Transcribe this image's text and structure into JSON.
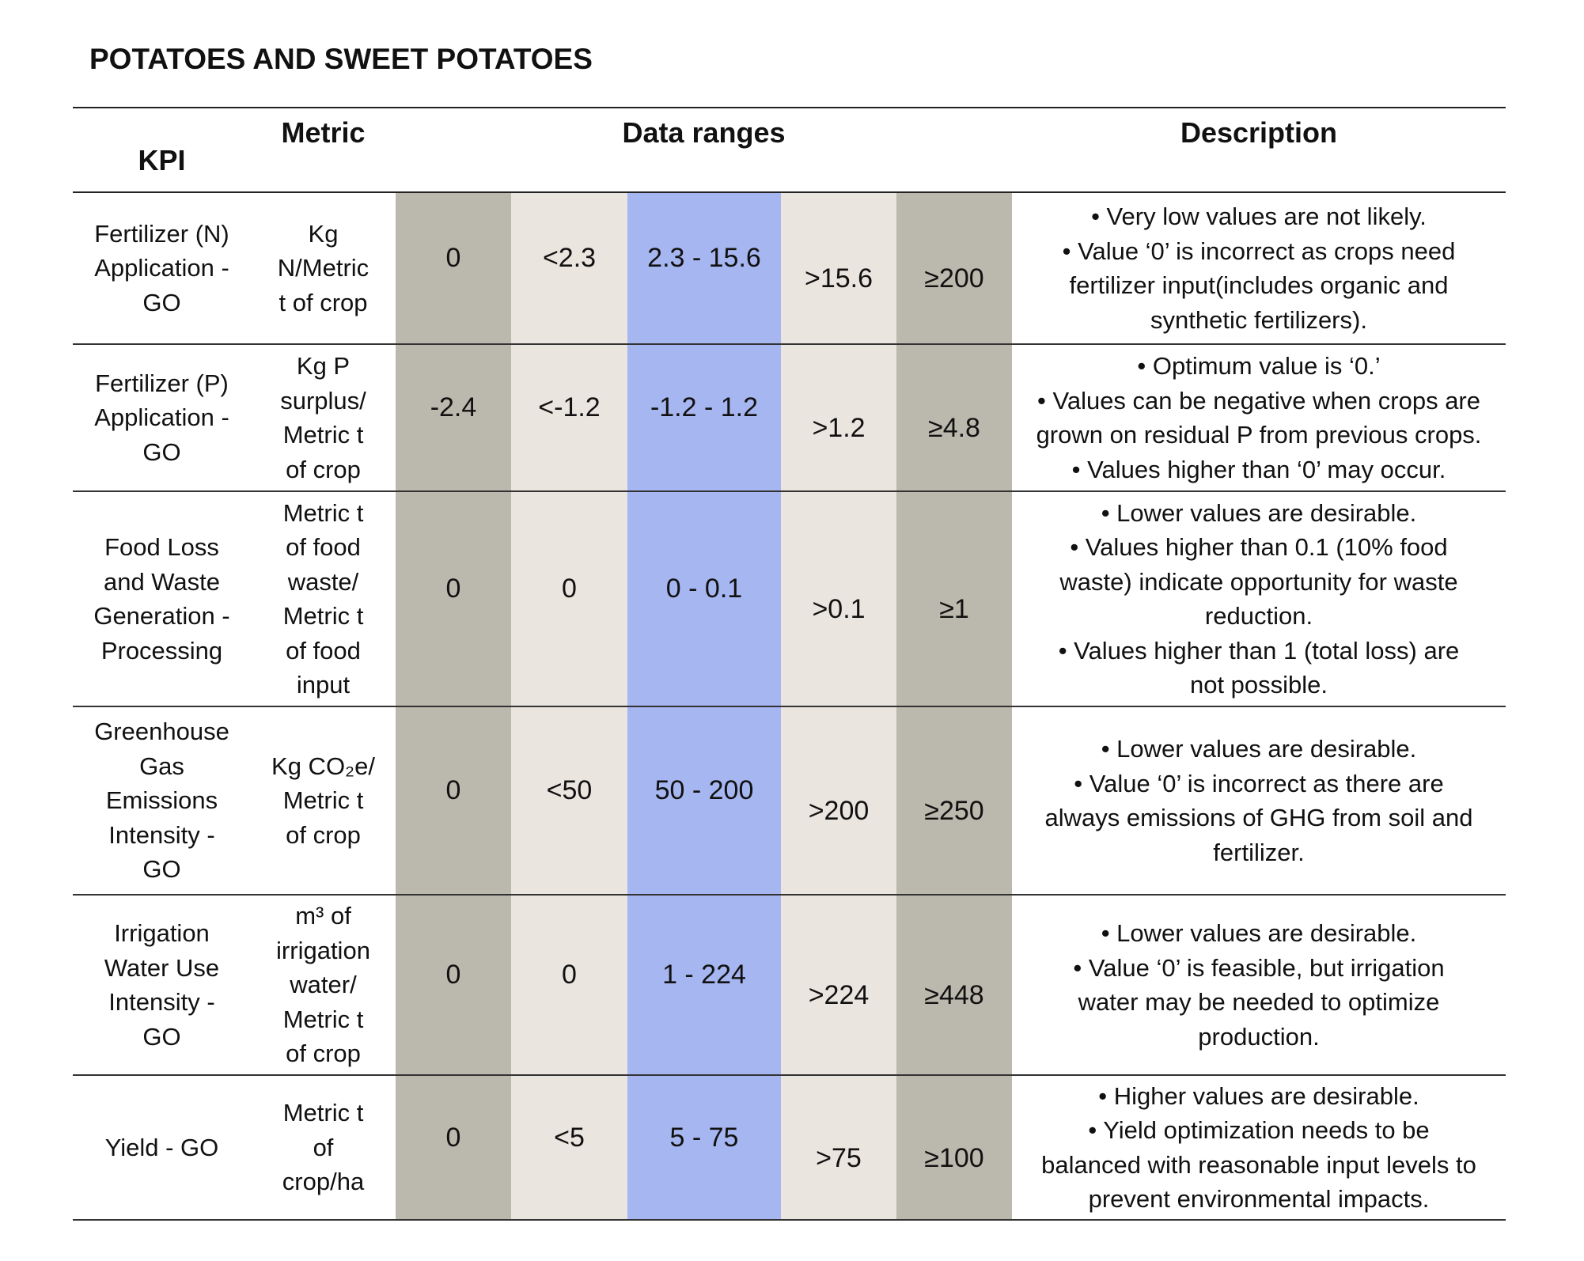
{
  "title": "POTATOES AND SWEET POTATOES",
  "headers": {
    "kpi": "KPI",
    "metric": "Metric",
    "ranges": "Data ranges",
    "description": "Description"
  },
  "colors": {
    "dark_band": "#bbb8ad",
    "light_band": "#ebe5df",
    "optimal_band": "#a6b6f1"
  },
  "rows": [
    {
      "kpi": [
        "Fertilizer (N)",
        "Application -",
        "GO"
      ],
      "metric": [
        "Kg",
        "N/Metric",
        "t of crop"
      ],
      "ranges": [
        "0",
        "<2.3",
        "2.3 - 15.6",
        ">15.6",
        "≥200"
      ],
      "description": [
        "• Very low values are not likely.",
        "• Value ‘0’ is incorrect as crops need",
        "fertilizer input(includes organic and",
        "synthetic fertilizers)."
      ]
    },
    {
      "kpi": [
        "Fertilizer (P)",
        "Application -",
        "GO"
      ],
      "metric": [
        "Kg P",
        "surplus/",
        "Metric t",
        "of crop"
      ],
      "ranges": [
        "-2.4",
        "<-1.2",
        "-1.2 - 1.2",
        ">1.2",
        "≥4.8"
      ],
      "description": [
        "• Optimum value is ‘0.’",
        "• Values can be negative when crops are",
        "grown on residual P from previous crops.",
        "• Values higher than ‘0’ may occur."
      ]
    },
    {
      "kpi": [
        "Food Loss",
        "and Waste",
        "Generation -",
        "Processing"
      ],
      "metric": [
        "Metric t",
        "of food",
        "waste/",
        "Metric t",
        "of food",
        "input"
      ],
      "ranges": [
        "0",
        "0",
        "0 - 0.1",
        ">0.1",
        "≥1"
      ],
      "description": [
        "• Lower values are desirable.",
        "• Values higher than 0.1 (10% food",
        "waste) indicate opportunity for waste",
        "reduction.",
        "• Values higher than 1 (total loss) are",
        "not possible."
      ]
    },
    {
      "kpi": [
        "Greenhouse",
        "Gas",
        "Emissions",
        "Intensity -",
        "GO"
      ],
      "metric": [
        "Kg CO₂e/",
        "Metric t",
        "of crop"
      ],
      "ranges": [
        "0",
        "<50",
        "50 - 200",
        ">200",
        "≥250"
      ],
      "description": [
        "• Lower values are desirable.",
        "• Value ‘0’ is incorrect as there are",
        "always emissions of GHG from soil and",
        "fertilizer."
      ]
    },
    {
      "kpi": [
        "Irrigation",
        "Water Use",
        "Intensity -",
        "GO"
      ],
      "metric": [
        "m³ of",
        "irrigation",
        "water/",
        "Metric t",
        "of crop"
      ],
      "ranges": [
        "0",
        "0",
        "1 - 224",
        ">224",
        "≥448"
      ],
      "description": [
        "• Lower values are desirable.",
        "• Value ‘0’ is feasible, but irrigation",
        "water may be needed to optimize",
        "production."
      ]
    },
    {
      "kpi": [
        "Yield - GO"
      ],
      "metric": [
        "Metric t",
        "of",
        "crop/ha"
      ],
      "ranges": [
        "0",
        "<5",
        "5 - 75",
        ">75",
        "≥100"
      ],
      "description": [
        "• Higher values are desirable.",
        "• Yield optimization needs to be",
        "balanced with reasonable input levels to",
        "prevent environmental impacts."
      ]
    }
  ]
}
